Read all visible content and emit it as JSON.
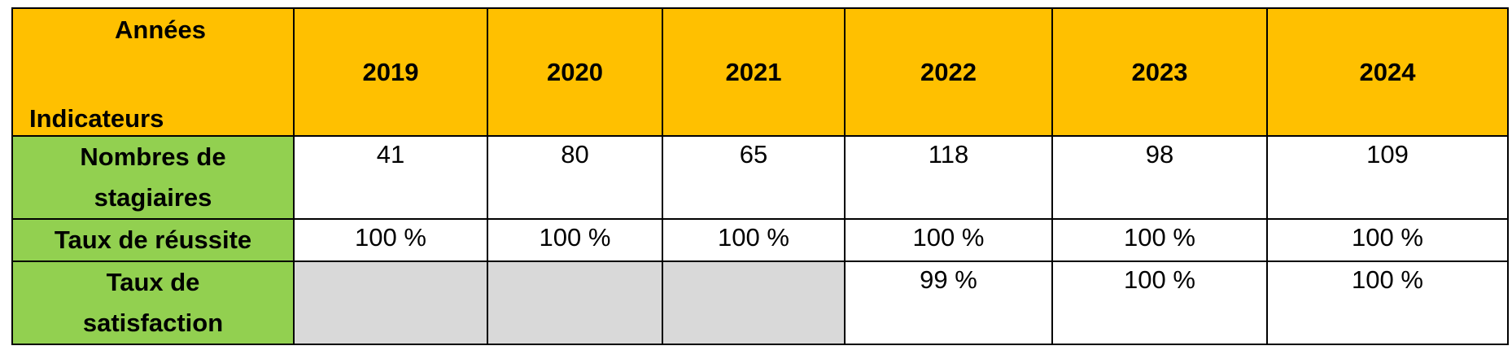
{
  "table": {
    "corner": {
      "top": "Années",
      "bottom": "Indicateurs"
    },
    "years": [
      "2019",
      "2020",
      "2021",
      "2022",
      "2023",
      "2024"
    ],
    "rows": [
      {
        "label": [
          "Nombres de",
          "stagiaires"
        ],
        "cells": [
          "41",
          "80",
          "65",
          "118",
          "98",
          "109"
        ]
      },
      {
        "label": [
          "Taux de réussite"
        ],
        "cells": [
          "100 %",
          "100 %",
          "100 %",
          "100 %",
          "100 %",
          "100 %"
        ]
      },
      {
        "label": [
          "Taux de",
          "satisfaction"
        ],
        "cells": [
          null,
          null,
          null,
          "99 %",
          "100 %",
          "100 %"
        ]
      }
    ]
  }
}
